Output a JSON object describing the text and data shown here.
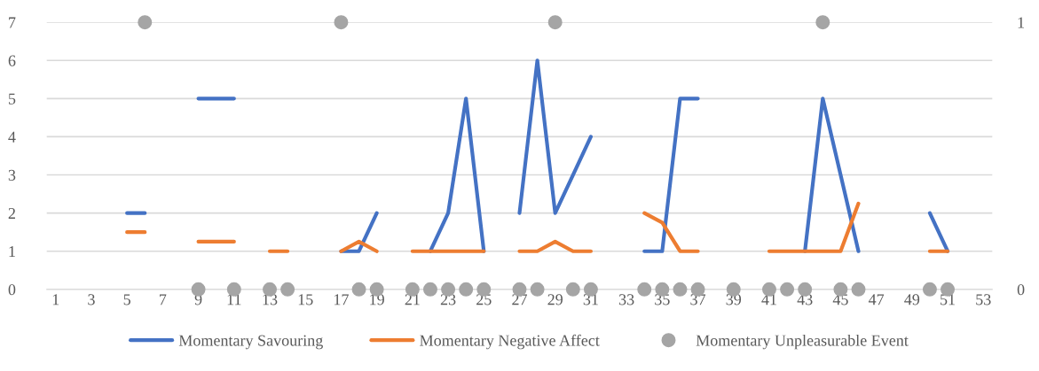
{
  "chart_data": {
    "type": "line",
    "categories": [
      "1",
      null,
      "3",
      null,
      "5",
      null,
      "7",
      null,
      "9",
      null,
      "11",
      null,
      "13",
      null,
      "15",
      null,
      "17",
      null,
      "19",
      null,
      "21",
      null,
      "23",
      null,
      "25",
      null,
      "27",
      null,
      "29",
      null,
      "31",
      null,
      "33",
      null,
      "35",
      null,
      "37",
      null,
      "39",
      null,
      "41",
      null,
      "43",
      null,
      "45",
      null,
      "47",
      null,
      "49",
      null,
      "51",
      null,
      "53"
    ],
    "series": [
      {
        "name": "Momentary Savouring",
        "color": "#4472c4",
        "values": [
          null,
          null,
          null,
          null,
          2,
          2,
          null,
          null,
          5,
          5,
          5,
          null,
          null,
          null,
          null,
          null,
          1,
          1,
          2,
          null,
          null,
          1,
          2,
          5,
          1,
          null,
          2,
          6,
          2,
          3,
          4,
          null,
          null,
          1,
          1,
          5,
          5,
          null,
          null,
          null,
          null,
          null,
          1,
          5,
          3,
          1,
          null,
          null,
          null,
          2,
          1,
          null,
          null
        ]
      },
      {
        "name": "Momentary Negative Affect",
        "color": "#ed7d31",
        "values": [
          null,
          null,
          null,
          null,
          1.5,
          1.5,
          null,
          null,
          1.25,
          1.25,
          1.25,
          null,
          1,
          1,
          null,
          null,
          1,
          1.25,
          1,
          null,
          1,
          1,
          1,
          1,
          1,
          null,
          1,
          1,
          1.25,
          1,
          1,
          null,
          null,
          2,
          1.75,
          1,
          1,
          null,
          null,
          null,
          1,
          1,
          1,
          1,
          1,
          2.25,
          null,
          null,
          null,
          1,
          1,
          null,
          null
        ]
      },
      {
        "name": "Momentary Unpleasurable Event",
        "type": "scatter",
        "marker": "circle",
        "axis": "y2",
        "color": "#a5a5a5",
        "values": [
          null,
          null,
          null,
          null,
          null,
          1,
          null,
          null,
          0,
          null,
          0,
          null,
          0,
          0,
          null,
          null,
          1,
          0,
          0,
          null,
          0,
          0,
          0,
          0,
          0,
          null,
          0,
          0,
          1,
          0,
          0,
          null,
          null,
          0,
          0,
          0,
          0,
          null,
          0,
          null,
          0,
          0,
          0,
          1,
          0,
          0,
          null,
          null,
          null,
          0,
          0,
          null,
          null
        ]
      }
    ],
    "ylim": [
      0,
      7
    ],
    "yticks": [
      0,
      1,
      2,
      3,
      4,
      5,
      6,
      7
    ],
    "y2lim": [
      0,
      1
    ],
    "y2ticks": [
      0,
      1
    ],
    "grid": "y",
    "legend": "bottom",
    "line_style": "solid"
  }
}
